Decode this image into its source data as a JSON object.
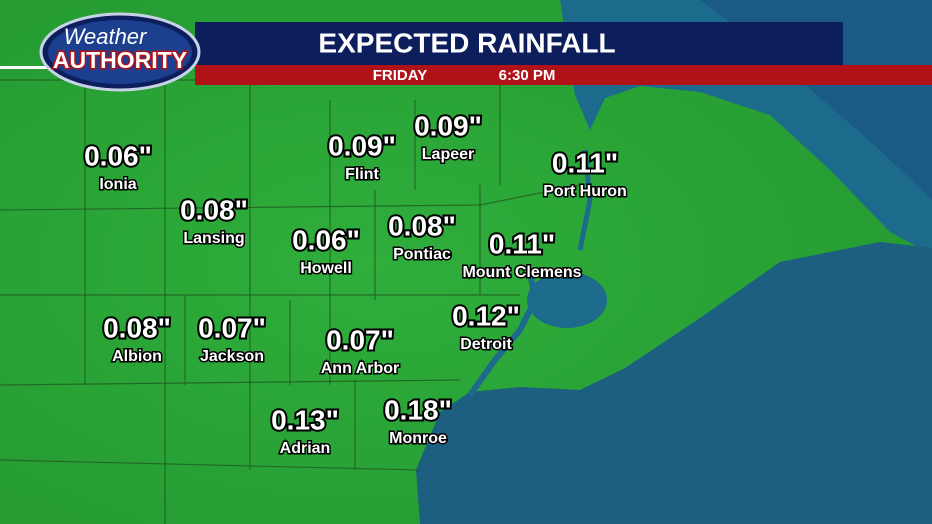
{
  "header": {
    "logo_top": "Weather",
    "logo_bottom": "AUTHORITY",
    "title": "EXPECTED RAINFALL",
    "day": "FRIDAY",
    "time": "6:30 PM"
  },
  "cities": [
    {
      "label": "Ionia",
      "value": "0.06\""
    },
    {
      "label": "Lansing",
      "value": "0.08\""
    },
    {
      "label": "Flint",
      "value": "0.09\""
    },
    {
      "label": "Lapeer",
      "value": "0.09\""
    },
    {
      "label": "Port Huron",
      "value": "0.11\""
    },
    {
      "label": "Howell",
      "value": "0.06\""
    },
    {
      "label": "Pontiac",
      "value": "0.08\""
    },
    {
      "label": "Mount Clemens",
      "value": "0.11\""
    },
    {
      "label": "Albion",
      "value": "0.08\""
    },
    {
      "label": "Jackson",
      "value": "0.07\""
    },
    {
      "label": "Ann Arbor",
      "value": "0.07\""
    },
    {
      "label": "Detroit",
      "value": "0.12\""
    },
    {
      "label": "Adrian",
      "value": "0.13\""
    },
    {
      "label": "Monroe",
      "value": "0.18\""
    }
  ]
}
